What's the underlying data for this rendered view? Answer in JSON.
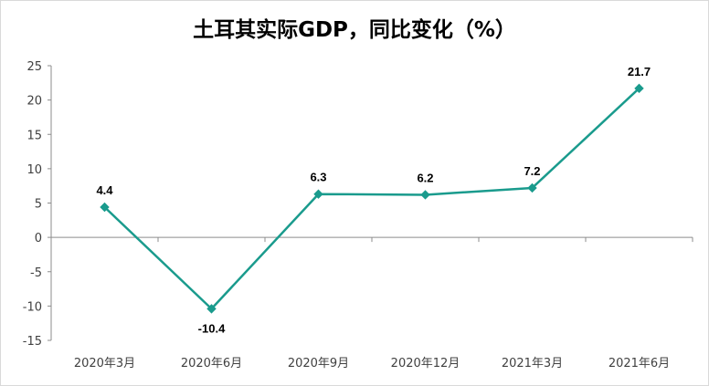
{
  "chart_data": {
    "type": "line",
    "title": "土耳其实际GDP，同比变化（%）",
    "categories": [
      "2020年3月",
      "2020年6月",
      "2020年9月",
      "2020年12月",
      "2021年3月",
      "2021年6月"
    ],
    "series": [
      {
        "values": [
          4.4,
          -10.4,
          6.3,
          6.2,
          7.2,
          21.7
        ],
        "labels": [
          "4.4",
          "-10.4",
          "6.3",
          "6.2",
          "7.2",
          "21.7"
        ]
      }
    ],
    "ylim": [
      -15,
      25
    ],
    "yticks": [
      "25",
      "20",
      "15",
      "10",
      "5",
      "0",
      "-5",
      "-10",
      "-15"
    ],
    "ytick_values": [
      25,
      20,
      15,
      10,
      5,
      0,
      -5,
      -10,
      -15
    ],
    "xlabel": "",
    "ylabel": "",
    "grid": false,
    "legend": "none",
    "line_color": "#1a9b8d",
    "marker": "diamond"
  }
}
